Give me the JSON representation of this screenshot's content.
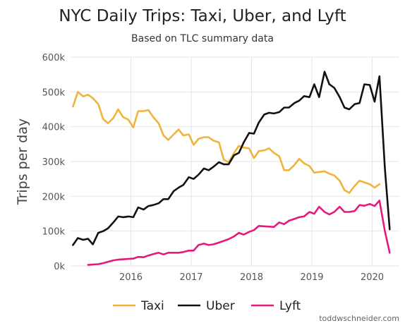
{
  "chart_data": {
    "type": "line",
    "title": "NYC Daily Trips: Taxi, Uber, and Lyft",
    "subtitle": "Based on TLC summary data",
    "xlabel": "",
    "ylabel": "Trips per day",
    "xlim": [
      2015.0,
      2020.45
    ],
    "ylim": [
      0,
      600000
    ],
    "x_ticks": [
      2016,
      2017,
      2018,
      2019,
      2020
    ],
    "x_tick_labels": [
      "2016",
      "2017",
      "2018",
      "2019",
      "2020"
    ],
    "y_ticks": [
      0,
      100000,
      200000,
      300000,
      400000,
      500000,
      600000
    ],
    "y_tick_labels": [
      "0k",
      "100k",
      "200k",
      "300k",
      "400k",
      "500k",
      "600k"
    ],
    "grid": true,
    "legend_position": "bottom",
    "credit": "toddwschneider.com",
    "series": [
      {
        "name": "Taxi",
        "color": "#f0b43c",
        "points": [
          [
            2015.04,
            458000
          ],
          [
            2015.12,
            500000
          ],
          [
            2015.21,
            487000
          ],
          [
            2015.29,
            492000
          ],
          [
            2015.37,
            482000
          ],
          [
            2015.46,
            465000
          ],
          [
            2015.54,
            422000
          ],
          [
            2015.62,
            410000
          ],
          [
            2015.71,
            425000
          ],
          [
            2015.79,
            450000
          ],
          [
            2015.87,
            428000
          ],
          [
            2015.96,
            420000
          ],
          [
            2016.04,
            398000
          ],
          [
            2016.12,
            445000
          ],
          [
            2016.21,
            445000
          ],
          [
            2016.29,
            448000
          ],
          [
            2016.37,
            428000
          ],
          [
            2016.46,
            410000
          ],
          [
            2016.54,
            375000
          ],
          [
            2016.62,
            362000
          ],
          [
            2016.71,
            378000
          ],
          [
            2016.79,
            392000
          ],
          [
            2016.87,
            375000
          ],
          [
            2016.96,
            378000
          ],
          [
            2017.04,
            348000
          ],
          [
            2017.12,
            365000
          ],
          [
            2017.21,
            370000
          ],
          [
            2017.29,
            370000
          ],
          [
            2017.37,
            360000
          ],
          [
            2017.46,
            355000
          ],
          [
            2017.54,
            305000
          ],
          [
            2017.62,
            298000
          ],
          [
            2017.71,
            325000
          ],
          [
            2017.79,
            345000
          ],
          [
            2017.87,
            340000
          ],
          [
            2017.96,
            338000
          ],
          [
            2018.04,
            310000
          ],
          [
            2018.12,
            330000
          ],
          [
            2018.21,
            332000
          ],
          [
            2018.29,
            338000
          ],
          [
            2018.37,
            325000
          ],
          [
            2018.46,
            315000
          ],
          [
            2018.54,
            275000
          ],
          [
            2018.62,
            275000
          ],
          [
            2018.71,
            290000
          ],
          [
            2018.79,
            308000
          ],
          [
            2018.87,
            295000
          ],
          [
            2018.96,
            287000
          ],
          [
            2019.04,
            268000
          ],
          [
            2019.12,
            270000
          ],
          [
            2019.21,
            272000
          ],
          [
            2019.29,
            265000
          ],
          [
            2019.37,
            260000
          ],
          [
            2019.46,
            245000
          ],
          [
            2019.54,
            218000
          ],
          [
            2019.62,
            210000
          ],
          [
            2019.71,
            230000
          ],
          [
            2019.79,
            245000
          ],
          [
            2019.87,
            240000
          ],
          [
            2019.96,
            235000
          ],
          [
            2020.04,
            225000
          ],
          [
            2020.12,
            235000
          ]
        ]
      },
      {
        "name": "Uber",
        "color": "#111111",
        "points": [
          [
            2015.04,
            60000
          ],
          [
            2015.12,
            80000
          ],
          [
            2015.21,
            75000
          ],
          [
            2015.29,
            78000
          ],
          [
            2015.37,
            62000
          ],
          [
            2015.46,
            95000
          ],
          [
            2015.54,
            100000
          ],
          [
            2015.62,
            108000
          ],
          [
            2015.71,
            125000
          ],
          [
            2015.79,
            142000
          ],
          [
            2015.87,
            140000
          ],
          [
            2015.96,
            142000
          ],
          [
            2016.04,
            140000
          ],
          [
            2016.12,
            168000
          ],
          [
            2016.21,
            162000
          ],
          [
            2016.29,
            172000
          ],
          [
            2016.37,
            175000
          ],
          [
            2016.46,
            180000
          ],
          [
            2016.54,
            192000
          ],
          [
            2016.62,
            192000
          ],
          [
            2016.71,
            215000
          ],
          [
            2016.79,
            225000
          ],
          [
            2016.87,
            233000
          ],
          [
            2016.96,
            255000
          ],
          [
            2017.04,
            250000
          ],
          [
            2017.12,
            262000
          ],
          [
            2017.21,
            280000
          ],
          [
            2017.29,
            275000
          ],
          [
            2017.37,
            285000
          ],
          [
            2017.46,
            298000
          ],
          [
            2017.54,
            292000
          ],
          [
            2017.62,
            292000
          ],
          [
            2017.71,
            318000
          ],
          [
            2017.79,
            325000
          ],
          [
            2017.87,
            355000
          ],
          [
            2017.96,
            382000
          ],
          [
            2018.04,
            380000
          ],
          [
            2018.12,
            412000
          ],
          [
            2018.21,
            435000
          ],
          [
            2018.29,
            440000
          ],
          [
            2018.37,
            438000
          ],
          [
            2018.46,
            442000
          ],
          [
            2018.54,
            455000
          ],
          [
            2018.62,
            455000
          ],
          [
            2018.71,
            468000
          ],
          [
            2018.79,
            475000
          ],
          [
            2018.87,
            488000
          ],
          [
            2018.96,
            485000
          ],
          [
            2019.04,
            522000
          ],
          [
            2019.12,
            485000
          ],
          [
            2019.21,
            558000
          ],
          [
            2019.29,
            522000
          ],
          [
            2019.37,
            512000
          ],
          [
            2019.46,
            485000
          ],
          [
            2019.54,
            455000
          ],
          [
            2019.62,
            450000
          ],
          [
            2019.71,
            465000
          ],
          [
            2019.79,
            468000
          ],
          [
            2019.87,
            522000
          ],
          [
            2019.96,
            520000
          ],
          [
            2020.04,
            472000
          ],
          [
            2020.12,
            545000
          ],
          [
            2020.21,
            280000
          ],
          [
            2020.29,
            105000
          ]
        ]
      },
      {
        "name": "Lyft",
        "color": "#e6187d",
        "points": [
          [
            2015.29,
            3000
          ],
          [
            2015.37,
            4000
          ],
          [
            2015.46,
            5000
          ],
          [
            2015.54,
            8000
          ],
          [
            2015.62,
            12000
          ],
          [
            2015.71,
            16000
          ],
          [
            2015.79,
            18000
          ],
          [
            2015.87,
            19000
          ],
          [
            2015.96,
            20000
          ],
          [
            2016.04,
            21000
          ],
          [
            2016.12,
            26000
          ],
          [
            2016.21,
            25000
          ],
          [
            2016.29,
            30000
          ],
          [
            2016.37,
            34000
          ],
          [
            2016.46,
            38000
          ],
          [
            2016.54,
            33000
          ],
          [
            2016.62,
            38000
          ],
          [
            2016.71,
            38000
          ],
          [
            2016.79,
            38000
          ],
          [
            2016.87,
            40000
          ],
          [
            2016.96,
            44000
          ],
          [
            2017.04,
            44000
          ],
          [
            2017.12,
            60000
          ],
          [
            2017.21,
            64000
          ],
          [
            2017.29,
            60000
          ],
          [
            2017.37,
            62000
          ],
          [
            2017.46,
            67000
          ],
          [
            2017.54,
            72000
          ],
          [
            2017.62,
            77000
          ],
          [
            2017.71,
            85000
          ],
          [
            2017.79,
            95000
          ],
          [
            2017.87,
            90000
          ],
          [
            2017.96,
            98000
          ],
          [
            2018.04,
            103000
          ],
          [
            2018.12,
            115000
          ],
          [
            2018.21,
            114000
          ],
          [
            2018.29,
            113000
          ],
          [
            2018.37,
            112000
          ],
          [
            2018.46,
            125000
          ],
          [
            2018.54,
            120000
          ],
          [
            2018.62,
            130000
          ],
          [
            2018.71,
            135000
          ],
          [
            2018.79,
            140000
          ],
          [
            2018.87,
            142000
          ],
          [
            2018.96,
            155000
          ],
          [
            2019.04,
            150000
          ],
          [
            2019.12,
            170000
          ],
          [
            2019.21,
            155000
          ],
          [
            2019.29,
            148000
          ],
          [
            2019.37,
            155000
          ],
          [
            2019.46,
            170000
          ],
          [
            2019.54,
            155000
          ],
          [
            2019.62,
            155000
          ],
          [
            2019.71,
            158000
          ],
          [
            2019.79,
            175000
          ],
          [
            2019.87,
            173000
          ],
          [
            2019.96,
            178000
          ],
          [
            2020.04,
            172000
          ],
          [
            2020.12,
            188000
          ],
          [
            2020.21,
            100000
          ],
          [
            2020.29,
            38000
          ]
        ]
      }
    ]
  }
}
